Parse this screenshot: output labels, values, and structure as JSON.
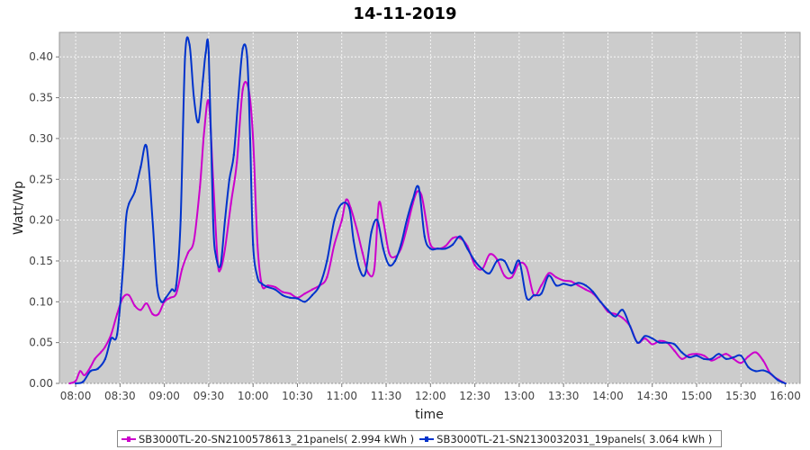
{
  "chart_data": {
    "type": "line",
    "title": "14-11-2019",
    "xlabel": "time",
    "ylabel": "Watt/Wp",
    "ylim": [
      0,
      0.43
    ],
    "xlim": [
      "07:49",
      "16:10"
    ],
    "x_ticks": [
      "08:00",
      "08:30",
      "09:00",
      "09:30",
      "10:00",
      "10:30",
      "11:00",
      "11:30",
      "12:00",
      "12:30",
      "13:00",
      "13:30",
      "14:00",
      "14:30",
      "15:00",
      "15:30",
      "16:00"
    ],
    "y_ticks": [
      "0.00",
      "0.05",
      "0.10",
      "0.15",
      "0.20",
      "0.25",
      "0.30",
      "0.35",
      "0.40"
    ],
    "grid": true,
    "legend_position": "bottom",
    "series": [
      {
        "name": "SB3000TL-20-SN2100578613_21panels( 2.994 kWh )",
        "color": "#cc00cc",
        "x": [
          "07:56",
          "08:00",
          "08:03",
          "08:06",
          "08:10",
          "08:13",
          "08:17",
          "08:20",
          "08:24",
          "08:28",
          "08:32",
          "08:36",
          "08:40",
          "08:44",
          "08:48",
          "08:52",
          "08:56",
          "09:00",
          "09:04",
          "09:08",
          "09:12",
          "09:16",
          "09:20",
          "09:24",
          "09:27",
          "09:30",
          "09:33",
          "09:36",
          "09:38",
          "09:41",
          "09:45",
          "09:49",
          "09:53",
          "09:57",
          "10:00",
          "10:03",
          "10:06",
          "10:10",
          "10:15",
          "10:20",
          "10:25",
          "10:30",
          "10:35",
          "10:40",
          "10:45",
          "10:50",
          "10:55",
          "11:00",
          "11:03",
          "11:06",
          "11:10",
          "11:14",
          "11:18",
          "11:22",
          "11:25",
          "11:28",
          "11:32",
          "11:36",
          "11:40",
          "11:44",
          "11:48",
          "11:51",
          "11:54",
          "11:57",
          "12:00",
          "12:05",
          "12:10",
          "12:15",
          "12:20",
          "12:25",
          "12:30",
          "12:35",
          "12:40",
          "12:45",
          "12:50",
          "12:55",
          "13:00",
          "13:05",
          "13:10",
          "13:15",
          "13:20",
          "13:25",
          "13:30",
          "13:35",
          "13:40",
          "13:45",
          "13:50",
          "13:55",
          "14:00",
          "14:05",
          "14:10",
          "14:15",
          "14:20",
          "14:25",
          "14:30",
          "14:35",
          "14:40",
          "14:45",
          "14:50",
          "14:55",
          "15:00",
          "15:05",
          "15:10",
          "15:15",
          "15:20",
          "15:25",
          "15:30",
          "15:35",
          "15:40",
          "15:45",
          "15:50",
          "15:55",
          "16:00"
        ],
        "y": [
          0.0,
          0.003,
          0.015,
          0.01,
          0.02,
          0.03,
          0.038,
          0.045,
          0.06,
          0.085,
          0.105,
          0.108,
          0.095,
          0.09,
          0.098,
          0.085,
          0.085,
          0.1,
          0.105,
          0.11,
          0.14,
          0.16,
          0.175,
          0.24,
          0.31,
          0.345,
          0.25,
          0.15,
          0.14,
          0.165,
          0.22,
          0.27,
          0.36,
          0.36,
          0.3,
          0.17,
          0.12,
          0.12,
          0.118,
          0.112,
          0.11,
          0.105,
          0.11,
          0.115,
          0.12,
          0.13,
          0.17,
          0.2,
          0.225,
          0.215,
          0.19,
          0.16,
          0.135,
          0.14,
          0.22,
          0.2,
          0.16,
          0.155,
          0.165,
          0.19,
          0.22,
          0.235,
          0.23,
          0.2,
          0.17,
          0.165,
          0.168,
          0.178,
          0.178,
          0.168,
          0.145,
          0.14,
          0.158,
          0.152,
          0.132,
          0.13,
          0.147,
          0.142,
          0.108,
          0.12,
          0.135,
          0.13,
          0.126,
          0.125,
          0.12,
          0.115,
          0.11,
          0.1,
          0.088,
          0.085,
          0.08,
          0.07,
          0.05,
          0.055,
          0.048,
          0.052,
          0.05,
          0.04,
          0.03,
          0.035,
          0.036,
          0.034,
          0.028,
          0.032,
          0.036,
          0.03,
          0.025,
          0.033,
          0.038,
          0.028,
          0.012,
          0.005,
          0.0
        ]
      },
      {
        "name": "SB3000TL-21-SN2130032031_19panels( 3.064 kWh )",
        "color": "#0033cc",
        "x": [
          "08:00",
          "08:05",
          "08:10",
          "08:15",
          "08:20",
          "08:24",
          "08:28",
          "08:32",
          "08:34",
          "08:36",
          "08:40",
          "08:44",
          "08:48",
          "08:52",
          "08:55",
          "08:58",
          "09:01",
          "09:05",
          "09:08",
          "09:11",
          "09:14",
          "09:17",
          "09:20",
          "09:23",
          "09:26",
          "09:28",
          "09:30",
          "09:33",
          "09:35",
          "09:38",
          "09:41",
          "09:44",
          "09:47",
          "09:50",
          "09:53",
          "09:56",
          "09:58",
          "10:00",
          "10:03",
          "10:06",
          "10:10",
          "10:15",
          "10:20",
          "10:25",
          "10:30",
          "10:35",
          "10:40",
          "10:45",
          "10:50",
          "10:55",
          "11:00",
          "11:05",
          "11:08",
          "11:12",
          "11:16",
          "11:20",
          "11:24",
          "11:28",
          "11:32",
          "11:36",
          "11:40",
          "11:44",
          "11:48",
          "11:52",
          "11:56",
          "12:00",
          "12:05",
          "12:10",
          "12:15",
          "12:20",
          "12:25",
          "12:30",
          "12:35",
          "12:40",
          "12:45",
          "12:50",
          "12:55",
          "13:00",
          "13:05",
          "13:10",
          "13:15",
          "13:20",
          "13:25",
          "13:30",
          "13:35",
          "13:40",
          "13:45",
          "13:50",
          "13:55",
          "14:00",
          "14:05",
          "14:10",
          "14:15",
          "14:20",
          "14:25",
          "14:30",
          "14:35",
          "14:40",
          "14:45",
          "14:50",
          "14:55",
          "15:00",
          "15:05",
          "15:10",
          "15:15",
          "15:20",
          "15:25",
          "15:30",
          "15:35",
          "15:40",
          "15:45",
          "15:50",
          "15:55",
          "16:00"
        ],
        "y": [
          0.0,
          0.002,
          0.015,
          0.018,
          0.03,
          0.055,
          0.06,
          0.14,
          0.2,
          0.22,
          0.235,
          0.265,
          0.29,
          0.2,
          0.12,
          0.1,
          0.105,
          0.115,
          0.12,
          0.2,
          0.4,
          0.415,
          0.35,
          0.32,
          0.37,
          0.405,
          0.405,
          0.2,
          0.155,
          0.145,
          0.2,
          0.25,
          0.28,
          0.35,
          0.41,
          0.4,
          0.3,
          0.17,
          0.13,
          0.122,
          0.118,
          0.115,
          0.108,
          0.105,
          0.104,
          0.1,
          0.108,
          0.12,
          0.15,
          0.2,
          0.22,
          0.215,
          0.175,
          0.14,
          0.135,
          0.185,
          0.2,
          0.165,
          0.145,
          0.15,
          0.17,
          0.2,
          0.225,
          0.24,
          0.18,
          0.165,
          0.165,
          0.165,
          0.17,
          0.18,
          0.165,
          0.15,
          0.14,
          0.135,
          0.15,
          0.15,
          0.135,
          0.15,
          0.105,
          0.108,
          0.11,
          0.132,
          0.12,
          0.122,
          0.12,
          0.123,
          0.12,
          0.112,
          0.1,
          0.09,
          0.082,
          0.09,
          0.07,
          0.05,
          0.058,
          0.055,
          0.05,
          0.05,
          0.048,
          0.038,
          0.032,
          0.034,
          0.03,
          0.03,
          0.036,
          0.03,
          0.032,
          0.034,
          0.02,
          0.015,
          0.016,
          0.012,
          0.004,
          0.0
        ]
      }
    ]
  }
}
